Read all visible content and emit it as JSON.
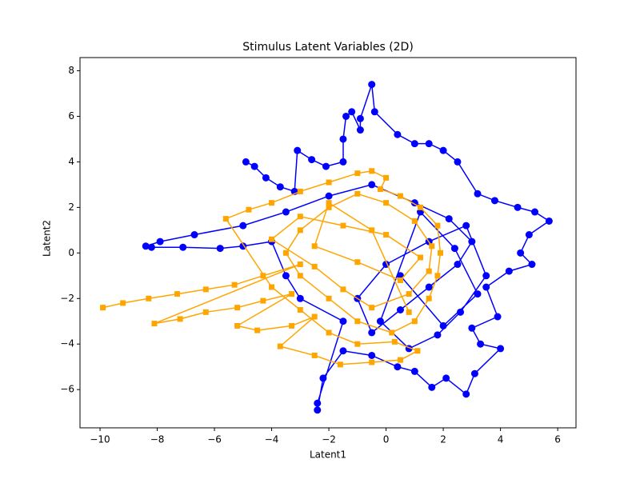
{
  "chart_data": {
    "type": "line",
    "title": "Stimulus Latent Variables (2D)",
    "x_label": "Latent1",
    "y_label": "Latent2",
    "xlim": [
      -10.7,
      6.64
    ],
    "ylim": [
      -7.68,
      8.58
    ],
    "xticks": [
      {
        "value": -10,
        "label": "−10"
      },
      {
        "value": -8,
        "label": "−8"
      },
      {
        "value": -6,
        "label": "−6"
      },
      {
        "value": -4,
        "label": "−4"
      },
      {
        "value": -2,
        "label": "−2"
      },
      0,
      2,
      4,
      6
    ],
    "yticks": [
      {
        "value": -6,
        "label": "−6"
      },
      {
        "value": -4,
        "label": "−4"
      },
      {
        "value": -2,
        "label": "−2"
      },
      0,
      2,
      4,
      6,
      8
    ],
    "series": [
      {
        "color": "#0000ff",
        "marker": "circle",
        "x": [
          -4.9,
          -4.6,
          -4.2,
          -3.7,
          -3.2,
          -3.1,
          -2.6,
          -2.1,
          -1.5,
          -1.5,
          -1.4,
          -1.2,
          -0.9,
          -0.9,
          -0.5,
          -0.4,
          0.4,
          1.0,
          1.5,
          2.0,
          2.5,
          3.2,
          3.8,
          4.6,
          5.2,
          5.7,
          5.0,
          4.7,
          5.1,
          4.3,
          3.5,
          3.9,
          3.0,
          3.3,
          4.0,
          3.1,
          2.8,
          2.1,
          1.6,
          1.0,
          0.4,
          -0.5,
          -1.5,
          -2.2,
          -2.4,
          -2.4,
          -1.5,
          -3.0,
          -3.5,
          -4.0,
          -5.0,
          -5.8,
          -7.1,
          -8.2,
          -8.4,
          -7.9,
          -6.7,
          -5.0,
          -3.5,
          -2.0,
          -0.5,
          1.0,
          2.2,
          3.0,
          2.5,
          1.5,
          0.5,
          -0.5,
          -1.0,
          0.0,
          1.5,
          2.8,
          3.5,
          2.6,
          1.8,
          0.8,
          -0.2,
          1.2,
          2.4,
          3.2,
          2.0,
          0.5
        ],
        "y": [
          4.0,
          3.8,
          3.3,
          2.9,
          2.7,
          4.5,
          4.1,
          3.8,
          4.0,
          5.0,
          6.0,
          6.2,
          5.4,
          5.9,
          7.4,
          6.2,
          5.2,
          4.8,
          4.8,
          4.5,
          4.0,
          2.6,
          2.3,
          2.0,
          1.8,
          1.4,
          0.8,
          0.0,
          -0.5,
          -0.8,
          -1.5,
          -2.8,
          -3.3,
          -4.0,
          -4.2,
          -5.3,
          -6.2,
          -5.5,
          -5.9,
          -5.2,
          -5.0,
          -4.5,
          -4.3,
          -5.5,
          -6.9,
          -6.6,
          -3.0,
          -2.0,
          -1.0,
          0.5,
          0.3,
          0.2,
          0.25,
          0.25,
          0.3,
          0.5,
          0.8,
          1.2,
          1.8,
          2.5,
          3.0,
          2.2,
          1.5,
          0.5,
          -0.5,
          -1.5,
          -2.5,
          -3.5,
          -2.0,
          -0.5,
          0.5,
          1.2,
          -1.0,
          -2.6,
          -3.6,
          -4.2,
          -3.0,
          1.8,
          0.2,
          -1.8,
          -3.2,
          -1.0
        ]
      },
      {
        "color": "#ffa500",
        "marker": "square",
        "x": [
          -9.9,
          -9.2,
          -8.3,
          -7.3,
          -6.3,
          -5.3,
          -4.3,
          -3.0,
          -8.1,
          -7.2,
          -6.3,
          -5.2,
          -4.3,
          -3.3,
          -5.2,
          -4.5,
          -3.3,
          -2.5,
          -3.7,
          -2.5,
          -1.6,
          -0.5,
          0.5,
          1.1,
          0.3,
          -1.0,
          -2.0,
          -3.0,
          -4.0,
          -5.6,
          -4.8,
          -4.0,
          -3.0,
          -2.0,
          -1.0,
          -0.5,
          0.0,
          -0.2,
          0.5,
          1.2,
          1.8,
          1.9,
          1.8,
          1.5,
          1.0,
          0.2,
          -1.0,
          -2.0,
          -3.0,
          -3.5,
          -3.0,
          -2.0,
          -1.0,
          0.0,
          1.0,
          1.6,
          1.5,
          0.8,
          -0.5,
          -1.5,
          -2.5,
          -4.0,
          -3.0,
          -1.5,
          0.0,
          1.2,
          0.5,
          -1.0,
          -2.5,
          -2.0,
          -0.5,
          0.8
        ],
        "y": [
          -2.4,
          -2.2,
          -2.0,
          -1.8,
          -1.6,
          -1.4,
          -1.0,
          -0.5,
          -3.1,
          -2.9,
          -2.6,
          -2.4,
          -2.1,
          -1.8,
          -3.2,
          -3.4,
          -3.2,
          -2.8,
          -4.1,
          -4.5,
          -4.9,
          -4.8,
          -4.7,
          -4.3,
          -3.9,
          -4.0,
          -3.5,
          -2.5,
          -1.5,
          1.5,
          1.9,
          2.2,
          2.7,
          3.1,
          3.5,
          3.6,
          3.3,
          2.8,
          2.5,
          2.0,
          1.2,
          0.0,
          -1.0,
          -2.0,
          -3.0,
          -3.5,
          -3.0,
          -2.0,
          -1.0,
          0.0,
          1.0,
          2.0,
          2.6,
          2.2,
          1.4,
          0.3,
          -0.8,
          -1.8,
          -2.4,
          -1.6,
          -0.6,
          0.6,
          1.6,
          1.2,
          0.8,
          -0.2,
          -1.2,
          -0.4,
          0.3,
          2.2,
          1.0,
          -2.6
        ]
      }
    ]
  }
}
